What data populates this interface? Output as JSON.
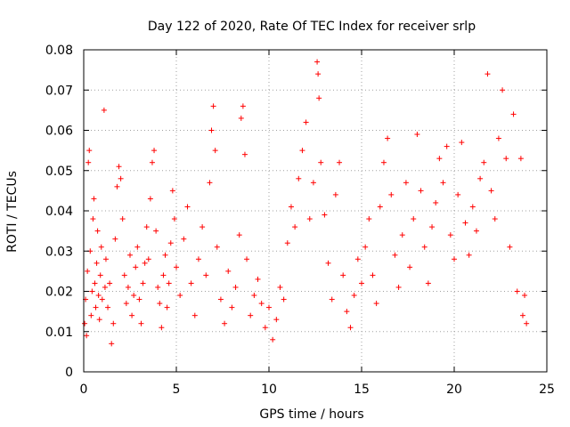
{
  "chart_data": {
    "type": "scatter",
    "title": "Day 122 of 2020, Rate Of TEC Index for receiver srlp",
    "xlabel": "GPS time / hours",
    "ylabel": "ROTI / TECUs",
    "xlim": [
      0,
      25
    ],
    "ylim": [
      0,
      0.08
    ],
    "xticks": [
      "0",
      "5",
      "10",
      "15",
      "20",
      "25"
    ],
    "yticks": [
      "0",
      "0.01",
      "0.02",
      "0.03",
      "0.04",
      "0.05",
      "0.06",
      "0.07",
      "0.08"
    ],
    "grid": true,
    "marker": "+",
    "color": "#ff0000",
    "series": [
      {
        "name": "ROTI",
        "points": [
          [
            0.05,
            0.012
          ],
          [
            0.1,
            0.018
          ],
          [
            0.15,
            0.009
          ],
          [
            0.2,
            0.025
          ],
          [
            0.25,
            0.052
          ],
          [
            0.3,
            0.055
          ],
          [
            0.35,
            0.03
          ],
          [
            0.4,
            0.014
          ],
          [
            0.45,
            0.02
          ],
          [
            0.5,
            0.038
          ],
          [
            0.55,
            0.043
          ],
          [
            0.6,
            0.022
          ],
          [
            0.65,
            0.016
          ],
          [
            0.7,
            0.027
          ],
          [
            0.75,
            0.035
          ],
          [
            0.8,
            0.019
          ],
          [
            0.85,
            0.013
          ],
          [
            0.9,
            0.024
          ],
          [
            0.95,
            0.031
          ],
          [
            1.0,
            0.018
          ],
          [
            1.1,
            0.065
          ],
          [
            1.15,
            0.021
          ],
          [
            1.2,
            0.028
          ],
          [
            1.3,
            0.016
          ],
          [
            1.4,
            0.022
          ],
          [
            1.5,
            0.007
          ],
          [
            1.6,
            0.012
          ],
          [
            1.7,
            0.033
          ],
          [
            1.8,
            0.046
          ],
          [
            1.9,
            0.051
          ],
          [
            2.0,
            0.048
          ],
          [
            2.1,
            0.038
          ],
          [
            2.2,
            0.024
          ],
          [
            2.3,
            0.017
          ],
          [
            2.4,
            0.021
          ],
          [
            2.5,
            0.029
          ],
          [
            2.6,
            0.014
          ],
          [
            2.7,
            0.019
          ],
          [
            2.8,
            0.026
          ],
          [
            2.9,
            0.031
          ],
          [
            3.0,
            0.018
          ],
          [
            3.1,
            0.012
          ],
          [
            3.2,
            0.022
          ],
          [
            3.3,
            0.027
          ],
          [
            3.4,
            0.036
          ],
          [
            3.5,
            0.028
          ],
          [
            3.6,
            0.043
          ],
          [
            3.7,
            0.052
          ],
          [
            3.8,
            0.055
          ],
          [
            3.9,
            0.035
          ],
          [
            4.0,
            0.021
          ],
          [
            4.1,
            0.017
          ],
          [
            4.2,
            0.011
          ],
          [
            4.3,
            0.024
          ],
          [
            4.4,
            0.029
          ],
          [
            4.5,
            0.016
          ],
          [
            4.6,
            0.022
          ],
          [
            4.7,
            0.032
          ],
          [
            4.8,
            0.045
          ],
          [
            4.9,
            0.038
          ],
          [
            5.0,
            0.026
          ],
          [
            5.2,
            0.019
          ],
          [
            5.4,
            0.033
          ],
          [
            5.6,
            0.041
          ],
          [
            5.8,
            0.022
          ],
          [
            6.0,
            0.014
          ],
          [
            6.2,
            0.028
          ],
          [
            6.4,
            0.036
          ],
          [
            6.6,
            0.024
          ],
          [
            6.8,
            0.047
          ],
          [
            6.9,
            0.06
          ],
          [
            7.0,
            0.066
          ],
          [
            7.1,
            0.055
          ],
          [
            7.2,
            0.031
          ],
          [
            7.4,
            0.018
          ],
          [
            7.6,
            0.012
          ],
          [
            7.8,
            0.025
          ],
          [
            8.0,
            0.016
          ],
          [
            8.2,
            0.021
          ],
          [
            8.4,
            0.034
          ],
          [
            8.5,
            0.063
          ],
          [
            8.6,
            0.066
          ],
          [
            8.7,
            0.054
          ],
          [
            8.8,
            0.028
          ],
          [
            9.0,
            0.014
          ],
          [
            9.2,
            0.019
          ],
          [
            9.4,
            0.023
          ],
          [
            9.6,
            0.017
          ],
          [
            9.8,
            0.011
          ],
          [
            10.0,
            0.016
          ],
          [
            10.2,
            0.008
          ],
          [
            10.4,
            0.013
          ],
          [
            10.6,
            0.021
          ],
          [
            10.8,
            0.018
          ],
          [
            11.0,
            0.032
          ],
          [
            11.2,
            0.041
          ],
          [
            11.4,
            0.036
          ],
          [
            11.6,
            0.048
          ],
          [
            11.8,
            0.055
          ],
          [
            12.0,
            0.062
          ],
          [
            12.2,
            0.038
          ],
          [
            12.4,
            0.047
          ],
          [
            12.6,
            0.077
          ],
          [
            12.65,
            0.074
          ],
          [
            12.7,
            0.068
          ],
          [
            12.8,
            0.052
          ],
          [
            13.0,
            0.039
          ],
          [
            13.2,
            0.027
          ],
          [
            13.4,
            0.018
          ],
          [
            13.6,
            0.044
          ],
          [
            13.8,
            0.052
          ],
          [
            14.0,
            0.024
          ],
          [
            14.2,
            0.015
          ],
          [
            14.4,
            0.011
          ],
          [
            14.6,
            0.019
          ],
          [
            14.8,
            0.028
          ],
          [
            15.0,
            0.022
          ],
          [
            15.2,
            0.031
          ],
          [
            15.4,
            0.038
          ],
          [
            15.6,
            0.024
          ],
          [
            15.8,
            0.017
          ],
          [
            16.0,
            0.041
          ],
          [
            16.2,
            0.052
          ],
          [
            16.4,
            0.058
          ],
          [
            16.6,
            0.044
          ],
          [
            16.8,
            0.029
          ],
          [
            17.0,
            0.021
          ],
          [
            17.2,
            0.034
          ],
          [
            17.4,
            0.047
          ],
          [
            17.6,
            0.026
          ],
          [
            17.8,
            0.038
          ],
          [
            18.0,
            0.059
          ],
          [
            18.2,
            0.045
          ],
          [
            18.4,
            0.031
          ],
          [
            18.6,
            0.022
          ],
          [
            18.8,
            0.036
          ],
          [
            19.0,
            0.042
          ],
          [
            19.2,
            0.053
          ],
          [
            19.4,
            0.047
          ],
          [
            19.6,
            0.056
          ],
          [
            19.8,
            0.034
          ],
          [
            20.0,
            0.028
          ],
          [
            20.2,
            0.044
          ],
          [
            20.4,
            0.057
          ],
          [
            20.6,
            0.037
          ],
          [
            20.8,
            0.029
          ],
          [
            21.0,
            0.041
          ],
          [
            21.2,
            0.035
          ],
          [
            21.4,
            0.048
          ],
          [
            21.6,
            0.052
          ],
          [
            21.8,
            0.074
          ],
          [
            22.0,
            0.045
          ],
          [
            22.2,
            0.038
          ],
          [
            22.4,
            0.058
          ],
          [
            22.6,
            0.07
          ],
          [
            22.8,
            0.053
          ],
          [
            23.0,
            0.031
          ],
          [
            23.2,
            0.064
          ],
          [
            23.4,
            0.02
          ],
          [
            23.6,
            0.053
          ],
          [
            23.7,
            0.014
          ],
          [
            23.8,
            0.019
          ],
          [
            23.9,
            0.012
          ]
        ]
      }
    ]
  }
}
